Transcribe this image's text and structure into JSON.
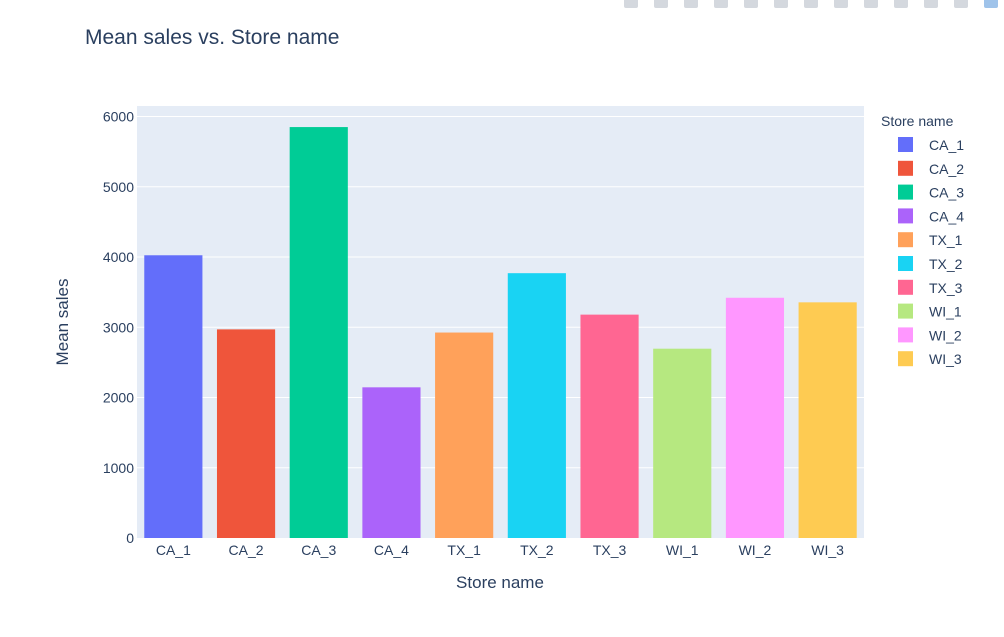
{
  "chart_data": {
    "type": "bar",
    "title": "Mean sales vs. Store name",
    "xlabel": "Store name",
    "ylabel": "Mean sales",
    "ylim": [
      0,
      6150
    ],
    "yticks": [
      0,
      1000,
      2000,
      3000,
      4000,
      5000,
      6000
    ],
    "grid": true,
    "legend_title": "Store name",
    "legend_placement": "right",
    "plot_background": "#e5ecf6",
    "categories": [
      "CA_1",
      "CA_2",
      "CA_3",
      "CA_4",
      "TX_1",
      "TX_2",
      "TX_3",
      "WI_1",
      "WI_2",
      "WI_3"
    ],
    "values": [
      4025,
      2970,
      5850,
      2145,
      2925,
      3770,
      3180,
      2695,
      3420,
      3355
    ],
    "colors": [
      "#636efa",
      "#ef553b",
      "#00cc96",
      "#ab63fa",
      "#ffa15a",
      "#19d3f3",
      "#ff6692",
      "#b6e880",
      "#ff97ff",
      "#fecb52"
    ]
  },
  "toolbar": {
    "icons": [
      "camera-icon",
      "zoom-icon",
      "pan-icon",
      "box-select-icon",
      "lasso-icon",
      "zoom-in-icon",
      "zoom-out-icon",
      "autoscale-icon",
      "reset-axes-icon",
      "spike-lines-icon",
      "hover-closest-icon",
      "hover-compare-icon",
      "plotly-logo-icon"
    ]
  }
}
